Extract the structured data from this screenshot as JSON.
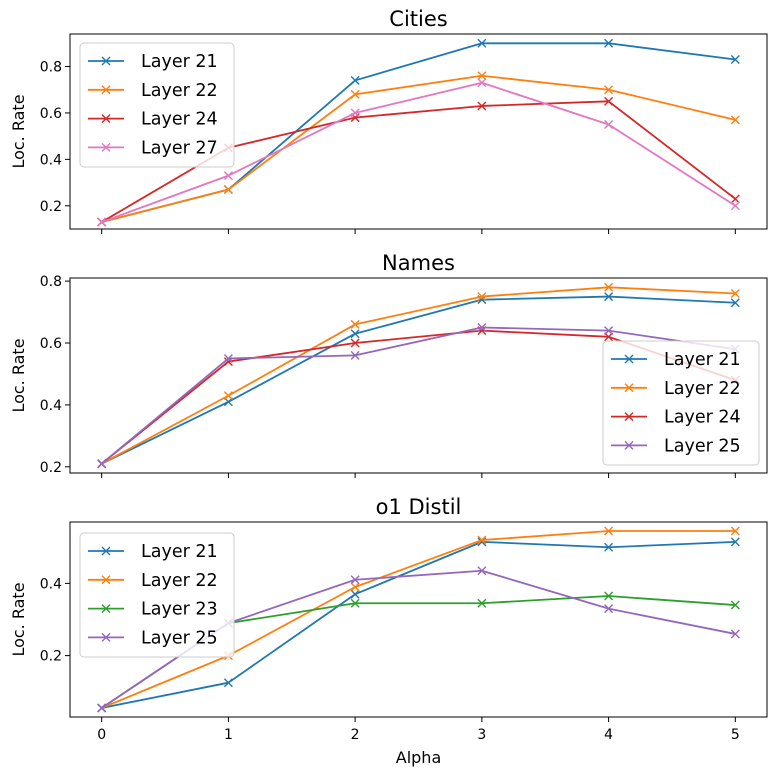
{
  "chart_data": [
    {
      "type": "line",
      "title": "Cities",
      "xlabel": "",
      "ylabel": "Loc. Rate",
      "x": [
        0,
        1,
        2,
        3,
        4,
        5
      ],
      "xlim": [
        -0.25,
        5.25
      ],
      "ylim": [
        0.1,
        0.94
      ],
      "yticks": [
        0.2,
        0.4,
        0.6,
        0.8
      ],
      "show_xticklabels": false,
      "legend": "upper-left",
      "grid": false,
      "series": [
        {
          "name": "Layer 21",
          "color": "#1f77b4",
          "values": [
            0.13,
            0.27,
            0.74,
            0.9,
            0.9,
            0.83
          ]
        },
        {
          "name": "Layer 22",
          "color": "#ff7f0e",
          "values": [
            0.13,
            0.27,
            0.68,
            0.76,
            0.7,
            0.57
          ]
        },
        {
          "name": "Layer 24",
          "color": "#d62728",
          "values": [
            0.13,
            0.45,
            0.58,
            0.63,
            0.65,
            0.23
          ]
        },
        {
          "name": "Layer 27",
          "color": "#e377c2",
          "values": [
            0.13,
            0.33,
            0.6,
            0.73,
            0.55,
            0.2
          ]
        }
      ]
    },
    {
      "type": "line",
      "title": "Names",
      "xlabel": "",
      "ylabel": "Loc. Rate",
      "x": [
        0,
        1,
        2,
        3,
        4,
        5
      ],
      "xlim": [
        -0.25,
        5.25
      ],
      "ylim": [
        0.18,
        0.81
      ],
      "yticks": [
        0.2,
        0.4,
        0.6,
        0.8
      ],
      "show_xticklabels": false,
      "legend": "lower-right",
      "grid": false,
      "series": [
        {
          "name": "Layer 21",
          "color": "#1f77b4",
          "values": [
            0.21,
            0.41,
            0.63,
            0.74,
            0.75,
            0.73
          ]
        },
        {
          "name": "Layer 22",
          "color": "#ff7f0e",
          "values": [
            0.21,
            0.43,
            0.66,
            0.75,
            0.78,
            0.76
          ]
        },
        {
          "name": "Layer 24",
          "color": "#d62728",
          "values": [
            0.21,
            0.54,
            0.6,
            0.64,
            0.62,
            0.48
          ]
        },
        {
          "name": "Layer 25",
          "color": "#9467bd",
          "values": [
            0.21,
            0.55,
            0.56,
            0.65,
            0.64,
            0.58
          ]
        }
      ]
    },
    {
      "type": "line",
      "title": "o1 Distil",
      "xlabel": "Alpha",
      "ylabel": "Loc. Rate",
      "x": [
        0,
        1,
        2,
        3,
        4,
        5
      ],
      "xlim": [
        -0.25,
        5.25
      ],
      "ylim": [
        0.03,
        0.57
      ],
      "yticks": [
        0.2,
        0.4
      ],
      "show_xticklabels": true,
      "xticks": [
        0,
        1,
        2,
        3,
        4,
        5
      ],
      "legend": "upper-left",
      "grid": false,
      "series": [
        {
          "name": "Layer 21",
          "color": "#1f77b4",
          "values": [
            0.055,
            0.125,
            0.37,
            0.515,
            0.5,
            0.515
          ]
        },
        {
          "name": "Layer 22",
          "color": "#ff7f0e",
          "values": [
            0.055,
            0.2,
            0.39,
            0.52,
            0.545,
            0.545
          ]
        },
        {
          "name": "Layer 23",
          "color": "#2ca02c",
          "values": [
            0.055,
            0.29,
            0.345,
            0.345,
            0.365,
            0.34
          ]
        },
        {
          "name": "Layer 25",
          "color": "#9467bd",
          "values": [
            0.055,
            0.29,
            0.41,
            0.435,
            0.33,
            0.26
          ]
        }
      ]
    }
  ]
}
